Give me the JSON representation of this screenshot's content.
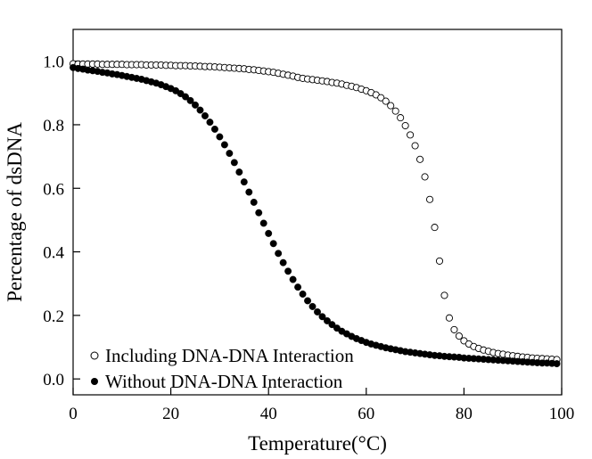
{
  "chart_data": {
    "type": "scatter",
    "title": "",
    "xlabel": "Temperature(°C)",
    "ylabel": "Percentage of dsDNA",
    "xlim": [
      0,
      100
    ],
    "ylim": [
      -0.05,
      1.1
    ],
    "xticks": [
      "0",
      "20",
      "40",
      "60",
      "80",
      "100"
    ],
    "yticks": [
      "0.0",
      "0.2",
      "0.4",
      "0.6",
      "0.8",
      "1.0"
    ],
    "grid": false,
    "legend_position": "bottom-left",
    "series": [
      {
        "name": "Including DNA-DNA Interaction",
        "marker": "open-circle",
        "color": "#000000",
        "x": [
          0,
          1,
          2,
          3,
          4,
          5,
          6,
          7,
          8,
          9,
          10,
          11,
          12,
          13,
          14,
          15,
          16,
          17,
          18,
          19,
          20,
          21,
          22,
          23,
          24,
          25,
          26,
          27,
          28,
          29,
          30,
          31,
          32,
          33,
          34,
          35,
          36,
          37,
          38,
          39,
          40,
          41,
          42,
          43,
          44,
          45,
          46,
          47,
          48,
          49,
          50,
          51,
          52,
          53,
          54,
          55,
          56,
          57,
          58,
          59,
          60,
          61,
          62,
          63,
          64,
          65,
          66,
          67,
          68,
          69,
          70,
          71,
          72,
          73,
          74,
          75,
          76,
          77,
          78,
          79,
          80,
          81,
          82,
          83,
          84,
          85,
          86,
          87,
          88,
          89,
          90,
          91,
          92,
          93,
          94,
          95,
          96,
          97,
          98,
          99
        ],
        "y": [
          0.992,
          0.991,
          0.991,
          0.991,
          0.991,
          0.991,
          0.99,
          0.99,
          0.99,
          0.99,
          0.99,
          0.989,
          0.989,
          0.989,
          0.989,
          0.988,
          0.988,
          0.988,
          0.988,
          0.987,
          0.987,
          0.986,
          0.986,
          0.986,
          0.985,
          0.985,
          0.984,
          0.983,
          0.983,
          0.982,
          0.981,
          0.98,
          0.979,
          0.978,
          0.977,
          0.976,
          0.974,
          0.973,
          0.971,
          0.969,
          0.967,
          0.965,
          0.962,
          0.959,
          0.956,
          0.953,
          0.949,
          0.946,
          0.944,
          0.942,
          0.94,
          0.938,
          0.936,
          0.933,
          0.931,
          0.928,
          0.924,
          0.921,
          0.917,
          0.912,
          0.907,
          0.901,
          0.894,
          0.885,
          0.874,
          0.86,
          0.843,
          0.822,
          0.797,
          0.768,
          0.734,
          0.691,
          0.636,
          0.565,
          0.477,
          0.371,
          0.263,
          0.192,
          0.155,
          0.135,
          0.12,
          0.11,
          0.102,
          0.096,
          0.091,
          0.087,
          0.083,
          0.08,
          0.078,
          0.075,
          0.073,
          0.071,
          0.069,
          0.068,
          0.066,
          0.065,
          0.064,
          0.063,
          0.062,
          0.061
        ]
      },
      {
        "name": "Without DNA-DNA Interaction",
        "marker": "filled-circle",
        "color": "#000000",
        "x": [
          0,
          1,
          2,
          3,
          4,
          5,
          6,
          7,
          8,
          9,
          10,
          11,
          12,
          13,
          14,
          15,
          16,
          17,
          18,
          19,
          20,
          21,
          22,
          23,
          24,
          25,
          26,
          27,
          28,
          29,
          30,
          31,
          32,
          33,
          34,
          35,
          36,
          37,
          38,
          39,
          40,
          41,
          42,
          43,
          44,
          45,
          46,
          47,
          48,
          49,
          50,
          51,
          52,
          53,
          54,
          55,
          56,
          57,
          58,
          59,
          60,
          61,
          62,
          63,
          64,
          65,
          66,
          67,
          68,
          69,
          70,
          71,
          72,
          73,
          74,
          75,
          76,
          77,
          78,
          79,
          80,
          81,
          82,
          83,
          84,
          85,
          86,
          87,
          88,
          89,
          90,
          91,
          92,
          93,
          94,
          95,
          96,
          97,
          98,
          99
        ],
        "y": [
          0.98,
          0.977,
          0.975,
          0.972,
          0.97,
          0.968,
          0.965,
          0.963,
          0.96,
          0.958,
          0.955,
          0.952,
          0.949,
          0.946,
          0.943,
          0.939,
          0.935,
          0.931,
          0.926,
          0.92,
          0.914,
          0.907,
          0.898,
          0.888,
          0.876,
          0.862,
          0.846,
          0.828,
          0.808,
          0.786,
          0.762,
          0.737,
          0.71,
          0.681,
          0.651,
          0.62,
          0.588,
          0.556,
          0.523,
          0.49,
          0.458,
          0.426,
          0.395,
          0.366,
          0.339,
          0.313,
          0.289,
          0.267,
          0.246,
          0.228,
          0.211,
          0.196,
          0.183,
          0.171,
          0.16,
          0.15,
          0.142,
          0.134,
          0.127,
          0.121,
          0.115,
          0.11,
          0.106,
          0.102,
          0.098,
          0.095,
          0.092,
          0.089,
          0.086,
          0.084,
          0.082,
          0.08,
          0.078,
          0.076,
          0.074,
          0.073,
          0.071,
          0.07,
          0.069,
          0.068,
          0.066,
          0.065,
          0.064,
          0.063,
          0.062,
          0.061,
          0.06,
          0.059,
          0.058,
          0.057,
          0.056,
          0.055,
          0.054,
          0.053,
          0.052,
          0.051,
          0.05,
          0.05,
          0.049,
          0.048
        ]
      }
    ]
  }
}
